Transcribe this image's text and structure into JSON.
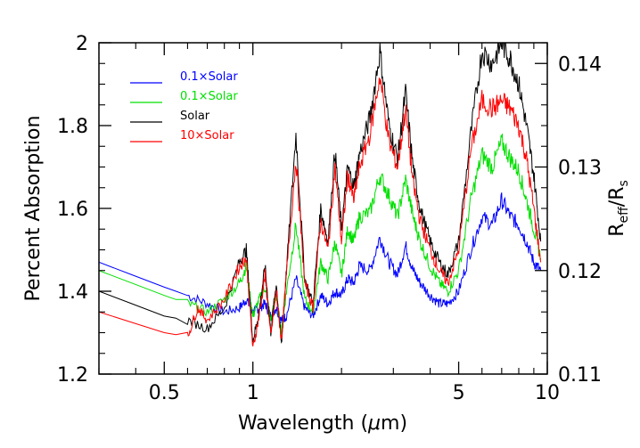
{
  "chart_data": {
    "type": "line",
    "xlabel": "Wavelength (μm)",
    "xlabel_prefix": "Wavelength (",
    "xlabel_symbol": "μ",
    "xlabel_suffix": "m)",
    "ylabel": "Percent Absorption",
    "y2label": "Reff/Rs",
    "y2label_main": "R",
    "y2label_sub1": "eff",
    "y2label_mid": "/R",
    "y2label_sub2": "s",
    "x_scale": "log",
    "xlim": [
      0.3,
      10
    ],
    "ylim": [
      1.2,
      2.0
    ],
    "y2lim": [
      0.11,
      0.142
    ],
    "x_ticks": [
      {
        "value": 0.5,
        "label": "0.5"
      },
      {
        "value": 1,
        "label": "1"
      },
      {
        "value": 5,
        "label": "5"
      },
      {
        "value": 10,
        "label": "10"
      }
    ],
    "y_ticks": [
      {
        "value": 1.2,
        "label": "1.2"
      },
      {
        "value": 1.4,
        "label": "1.4"
      },
      {
        "value": 1.6,
        "label": "1.6"
      },
      {
        "value": 1.8,
        "label": "1.8"
      },
      {
        "value": 2.0,
        "label": "2"
      }
    ],
    "y2_ticks": [
      {
        "value": 0.11,
        "label": "0.11"
      },
      {
        "value": 0.12,
        "label": "0.12"
      },
      {
        "value": 0.13,
        "label": "0.13"
      },
      {
        "value": 0.14,
        "label": "0.14"
      }
    ],
    "grid": false,
    "legend_position": "top-left",
    "series": [
      {
        "name": "0.1×Solar",
        "color": "#0000ff",
        "x": [
          0.3,
          0.5,
          0.6,
          0.7,
          0.8,
          0.9,
          0.95,
          1.0,
          1.05,
          1.1,
          1.15,
          1.2,
          1.25,
          1.3,
          1.4,
          1.5,
          1.6,
          1.7,
          1.8,
          1.9,
          2.0,
          2.1,
          2.2,
          2.3,
          2.5,
          2.7,
          2.9,
          3.1,
          3.3,
          3.5,
          3.7,
          4.0,
          4.3,
          4.6,
          5.0,
          5.5,
          6.0,
          6.5,
          7.0,
          7.5,
          8.0,
          8.5,
          9.0,
          9.5
        ],
        "y": [
          1.47,
          1.41,
          1.39,
          1.37,
          1.35,
          1.36,
          1.38,
          1.35,
          1.36,
          1.37,
          1.34,
          1.36,
          1.33,
          1.34,
          1.43,
          1.36,
          1.34,
          1.39,
          1.37,
          1.4,
          1.39,
          1.43,
          1.42,
          1.46,
          1.45,
          1.53,
          1.47,
          1.44,
          1.51,
          1.45,
          1.42,
          1.39,
          1.37,
          1.37,
          1.4,
          1.5,
          1.58,
          1.56,
          1.62,
          1.58,
          1.56,
          1.52,
          1.47,
          1.45
        ]
      },
      {
        "name": "0.1×Solar",
        "color": "#00e000",
        "x": [
          0.3,
          0.5,
          0.6,
          0.7,
          0.8,
          0.9,
          0.95,
          1.0,
          1.05,
          1.1,
          1.15,
          1.2,
          1.25,
          1.3,
          1.4,
          1.5,
          1.6,
          1.7,
          1.8,
          1.9,
          2.0,
          2.1,
          2.2,
          2.3,
          2.5,
          2.7,
          2.9,
          3.1,
          3.3,
          3.5,
          3.7,
          4.0,
          4.3,
          4.6,
          5.0,
          5.5,
          6.0,
          6.5,
          7.0,
          7.5,
          8.0,
          8.5,
          9.0,
          9.5
        ],
        "y": [
          1.45,
          1.39,
          1.37,
          1.35,
          1.38,
          1.42,
          1.46,
          1.34,
          1.38,
          1.41,
          1.33,
          1.39,
          1.3,
          1.4,
          1.56,
          1.38,
          1.35,
          1.47,
          1.43,
          1.52,
          1.44,
          1.55,
          1.52,
          1.58,
          1.59,
          1.68,
          1.63,
          1.58,
          1.67,
          1.58,
          1.52,
          1.46,
          1.42,
          1.4,
          1.45,
          1.62,
          1.73,
          1.7,
          1.76,
          1.72,
          1.69,
          1.62,
          1.55,
          1.48
        ]
      },
      {
        "name": "Solar",
        "color": "#000000",
        "x": [
          0.3,
          0.5,
          0.6,
          0.7,
          0.8,
          0.9,
          0.95,
          1.0,
          1.05,
          1.1,
          1.15,
          1.2,
          1.25,
          1.3,
          1.4,
          1.5,
          1.6,
          1.7,
          1.8,
          1.9,
          2.0,
          2.1,
          2.2,
          2.3,
          2.5,
          2.7,
          2.9,
          3.1,
          3.3,
          3.5,
          3.7,
          4.0,
          4.3,
          4.6,
          5.0,
          5.5,
          6.0,
          6.5,
          7.0,
          7.5,
          8.0,
          8.5,
          9.0,
          9.5
        ],
        "y": [
          1.4,
          1.34,
          1.33,
          1.31,
          1.36,
          1.47,
          1.5,
          1.28,
          1.35,
          1.46,
          1.3,
          1.42,
          1.27,
          1.45,
          1.78,
          1.43,
          1.37,
          1.6,
          1.52,
          1.74,
          1.55,
          1.7,
          1.65,
          1.73,
          1.82,
          1.98,
          1.8,
          1.72,
          1.88,
          1.7,
          1.6,
          1.52,
          1.47,
          1.44,
          1.52,
          1.78,
          1.98,
          1.95,
          2.0,
          1.96,
          1.9,
          1.8,
          1.68,
          1.52
        ]
      },
      {
        "name": "10×Solar",
        "color": "#ff0000",
        "x": [
          0.3,
          0.5,
          0.6,
          0.65,
          0.7,
          0.8,
          0.9,
          0.95,
          1.0,
          1.05,
          1.1,
          1.15,
          1.2,
          1.25,
          1.3,
          1.4,
          1.5,
          1.6,
          1.7,
          1.8,
          1.9,
          2.0,
          2.1,
          2.2,
          2.3,
          2.5,
          2.7,
          2.9,
          3.1,
          3.3,
          3.5,
          3.7,
          4.0,
          4.3,
          4.6,
          5.0,
          5.5,
          6.0,
          6.5,
          7.0,
          7.5,
          8.0,
          8.5,
          9.0,
          9.5
        ],
        "y": [
          1.35,
          1.3,
          1.29,
          1.36,
          1.33,
          1.38,
          1.46,
          1.48,
          1.26,
          1.34,
          1.44,
          1.29,
          1.4,
          1.28,
          1.44,
          1.72,
          1.42,
          1.36,
          1.57,
          1.5,
          1.7,
          1.52,
          1.68,
          1.62,
          1.7,
          1.78,
          1.92,
          1.76,
          1.7,
          1.84,
          1.66,
          1.57,
          1.5,
          1.45,
          1.42,
          1.5,
          1.74,
          1.86,
          1.84,
          1.86,
          1.84,
          1.8,
          1.72,
          1.6,
          1.47
        ]
      }
    ]
  }
}
